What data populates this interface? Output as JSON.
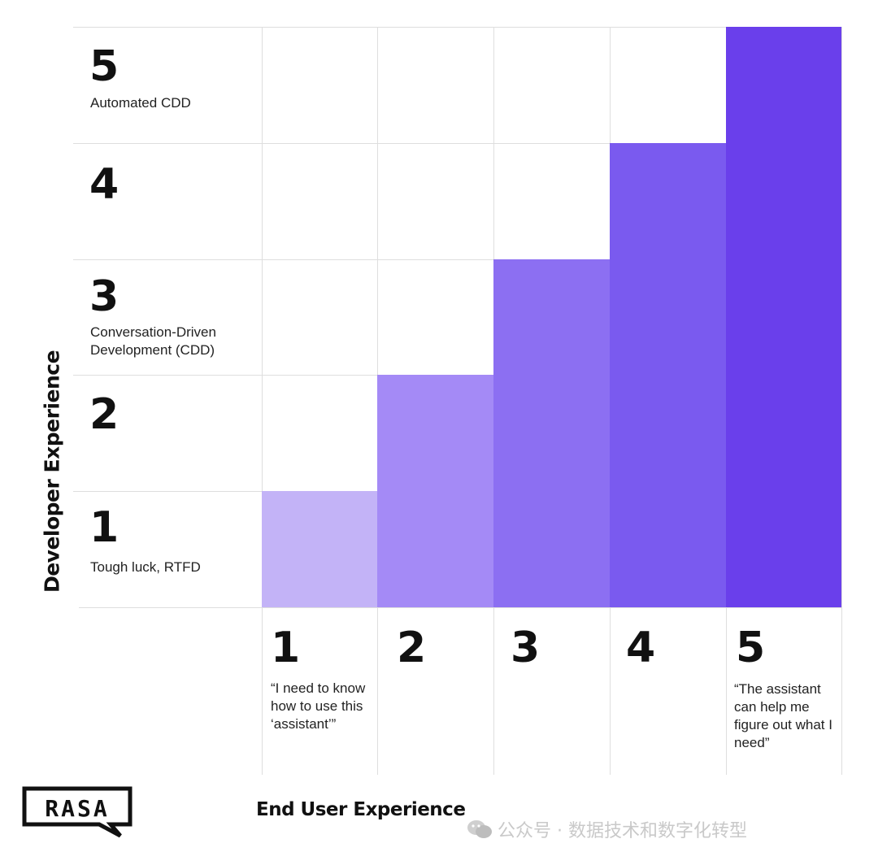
{
  "rows": [
    {
      "number": "5",
      "description": "Automated CDD"
    },
    {
      "number": "4",
      "description": ""
    },
    {
      "number": "3",
      "description": "Conversation-Driven Development (CDD)"
    },
    {
      "number": "2",
      "description": ""
    },
    {
      "number": "1",
      "description": "Tough luck, RTFD"
    }
  ],
  "columns": [
    {
      "number": "1",
      "description": "“I need to know how to use this ‘assistant’”"
    },
    {
      "number": "2",
      "description": ""
    },
    {
      "number": "3",
      "description": ""
    },
    {
      "number": "4",
      "description": ""
    },
    {
      "number": "5",
      "description": "“The assistant can help me figure out what I need”"
    }
  ],
  "y_axis_title": "Developer Experience",
  "x_axis_title": "End User Experience",
  "logo_text": "RASA",
  "watermark_text": "公众号 · 数据技术和数字化转型",
  "colors": {
    "level_1": "#c3b3f7",
    "level_2": "#a48af6",
    "level_3": "#8c6ff2",
    "level_4": "#7a5aef",
    "level_5": "#6a3feb",
    "grid": "#dedede",
    "text": "#111111"
  }
}
